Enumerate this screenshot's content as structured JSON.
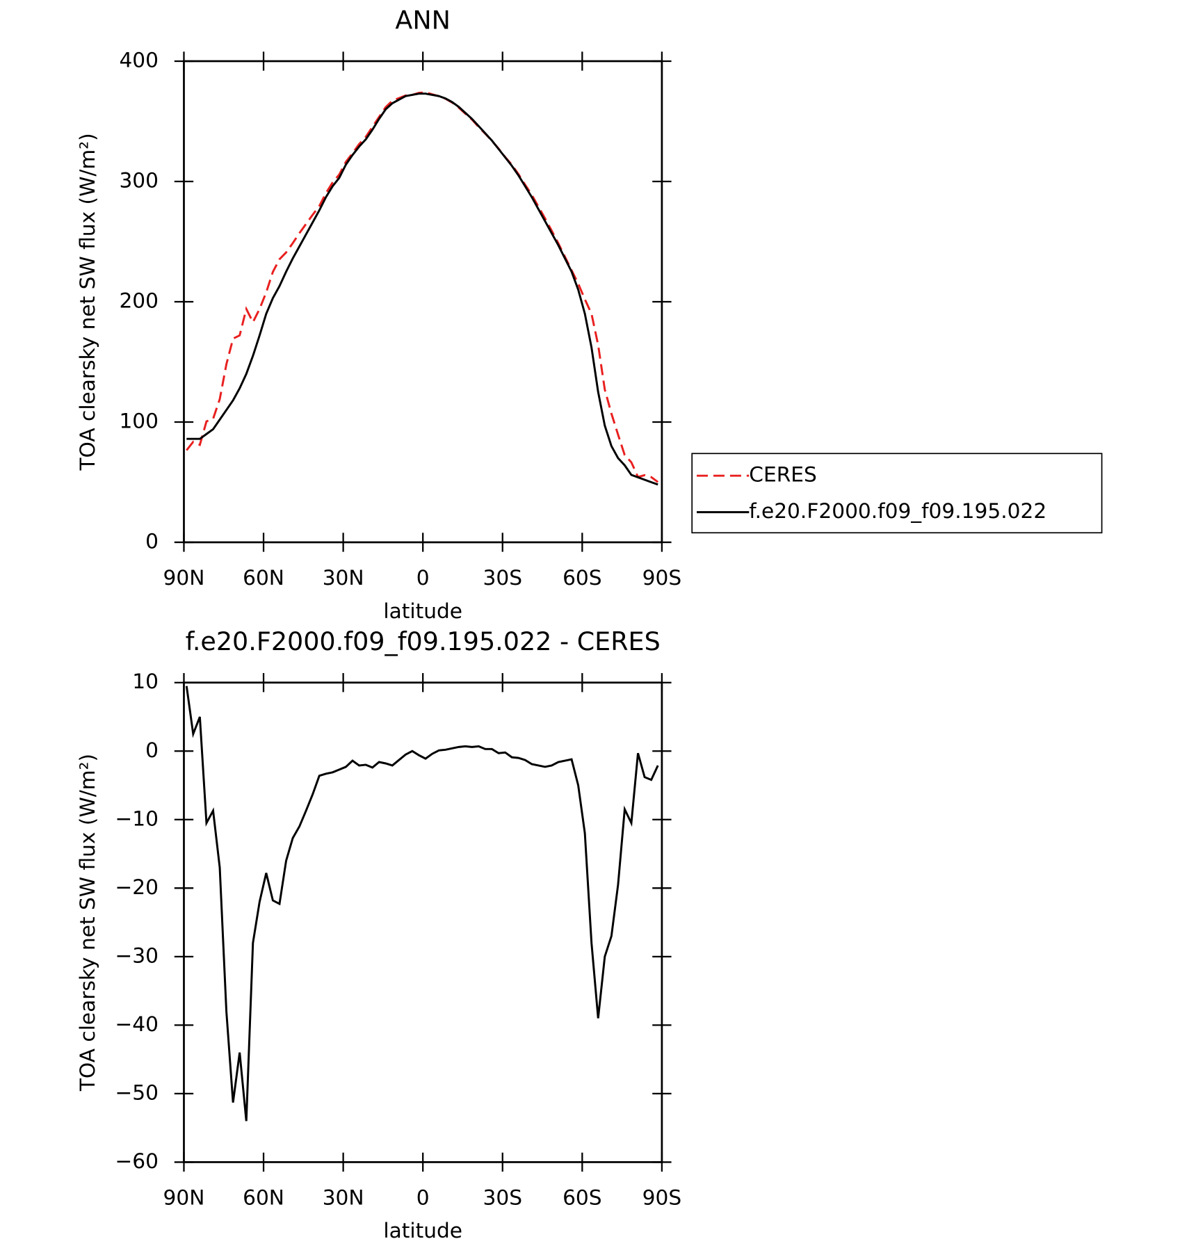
{
  "chart_data": [
    {
      "type": "line",
      "title": "ANN",
      "xlabel": "latitude",
      "ylabel": "TOA clearsky net SW flux (W/m²)",
      "x": [
        89,
        86.5,
        84,
        81.5,
        79,
        76.5,
        74,
        71.5,
        69,
        66.5,
        64,
        61.5,
        59,
        56.5,
        54,
        51.5,
        49,
        46.5,
        44,
        41.5,
        39,
        36.5,
        34,
        31.5,
        29,
        26.5,
        24,
        21.5,
        19,
        16.5,
        14,
        11.5,
        9,
        6.5,
        4,
        1.5,
        -1,
        -3.5,
        -6,
        -8.5,
        -11,
        -13.5,
        -16,
        -18.5,
        -21,
        -23.5,
        -26,
        -28.5,
        -31,
        -33.5,
        -36,
        -38.5,
        -41,
        -43.5,
        -46,
        -48.5,
        -51,
        -53.5,
        -56,
        -58.5,
        -61,
        -63.5,
        -66,
        -68.5,
        -71,
        -73.5,
        -76,
        -78.5,
        -81,
        -83.5,
        -86,
        -88.5
      ],
      "series": [
        {
          "name": "CERES",
          "color": "#e8201f",
          "line_style": "dashed",
          "values": [
            76.5,
            83.5,
            81,
            100.5,
            102.7,
            119,
            148,
            169.3,
            172,
            194,
            183,
            194,
            207.8,
            224.8,
            235.3,
            241,
            248.7,
            257,
            264.7,
            272.3,
            279.6,
            290.3,
            299.1,
            305.7,
            316.3,
            323.4,
            331.1,
            337,
            345.4,
            353.6,
            361.8,
            367.1,
            369.3,
            371.5,
            372,
            373.6,
            374.1,
            372.4,
            370.9,
            368.8,
            365.6,
            361.4,
            356.3,
            351.4,
            345.3,
            339.7,
            333.7,
            327.3,
            320.2,
            313.9,
            306,
            297.3,
            288.9,
            279.1,
            269.3,
            259.1,
            248.6,
            237.4,
            226.2,
            215,
            202,
            190,
            164,
            127,
            107,
            89.5,
            72.5,
            66.5,
            54.3,
            55.8,
            54.2,
            50.1
          ]
        },
        {
          "name": "f.e20.F2000.f09_f09.195.022",
          "color": "#000000",
          "line_style": "solid",
          "values": [
            86,
            86,
            86,
            90,
            94,
            102,
            110,
            118,
            128,
            140,
            155,
            172,
            190,
            203,
            213,
            225,
            236,
            246,
            256,
            266,
            276,
            287,
            296,
            303,
            314,
            322,
            329,
            335,
            343,
            352,
            360,
            365,
            368,
            371,
            372,
            373,
            373,
            372,
            371,
            369,
            366,
            362,
            357,
            352,
            346,
            340,
            334,
            327,
            320,
            313,
            305,
            296,
            287,
            277,
            267,
            257,
            247,
            236,
            225,
            210,
            190,
            162,
            125,
            97,
            80,
            70,
            64,
            56,
            54,
            52,
            50,
            48
          ]
        }
      ],
      "xlim": [
        90,
        -90
      ],
      "xticks": [
        {
          "value": 90,
          "label": "90N"
        },
        {
          "value": 60,
          "label": "60N"
        },
        {
          "value": 30,
          "label": "30N"
        },
        0,
        {
          "value": -30,
          "label": "30S"
        },
        {
          "value": -60,
          "label": "60S"
        },
        {
          "value": -90,
          "label": "90S"
        }
      ],
      "ylim": [
        0,
        400
      ],
      "yticks": [
        0,
        100,
        200,
        300,
        400
      ],
      "legend": "right",
      "grid": false
    },
    {
      "type": "line",
      "title": "f.e20.F2000.f09_f09.195.022 - CERES",
      "xlabel": "latitude",
      "ylabel": "TOA clearsky net SW flux (W/m²)",
      "x": [
        89,
        86.5,
        84,
        81.5,
        79,
        76.5,
        74,
        71.5,
        69,
        66.5,
        64,
        61.5,
        59,
        56.5,
        54,
        51.5,
        49,
        46.5,
        44,
        41.5,
        39,
        36.5,
        34,
        31.5,
        29,
        26.5,
        24,
        21.5,
        19,
        16.5,
        14,
        11.5,
        9,
        6.5,
        4,
        1.5,
        -1,
        -3.5,
        -6,
        -8.5,
        -11,
        -13.5,
        -16,
        -18.5,
        -21,
        -23.5,
        -26,
        -28.5,
        -31,
        -33.5,
        -36,
        -38.5,
        -41,
        -43.5,
        -46,
        -48.5,
        -51,
        -53.5,
        -56,
        -58.5,
        -61,
        -63.5,
        -66,
        -68.5,
        -71,
        -73.5,
        -76,
        -78.5,
        -81,
        -83.5,
        -86,
        -88.5
      ],
      "series": [
        {
          "name": "f.e20.F2000.f09_f09.195.022 - CERES",
          "color": "#000000",
          "line_style": "solid",
          "values": [
            9.5,
            2.5,
            5,
            -10.5,
            -8.7,
            -17,
            -38,
            -51.3,
            -44,
            -54,
            -28,
            -22,
            -17.8,
            -21.8,
            -22.3,
            -16,
            -12.7,
            -11,
            -8.7,
            -6.3,
            -3.6,
            -3.3,
            -3.1,
            -2.7,
            -2.3,
            -1.4,
            -2.1,
            -2,
            -2.4,
            -1.6,
            -1.8,
            -2.1,
            -1.3,
            -0.5,
            0,
            -0.6,
            -1.1,
            -0.4,
            0.1,
            0.2,
            0.4,
            0.6,
            0.7,
            0.6,
            0.7,
            0.3,
            0.3,
            -0.3,
            -0.2,
            -0.9,
            -1,
            -1.3,
            -1.9,
            -2.1,
            -2.3,
            -2.1,
            -1.6,
            -1.4,
            -1.2,
            -5,
            -12,
            -28,
            -39,
            -30,
            -27,
            -19.5,
            -8.5,
            -10.5,
            -0.3,
            -3.8,
            -4.2,
            -2.1
          ]
        }
      ],
      "xlim": [
        90,
        -90
      ],
      "xticks": [
        {
          "value": 90,
          "label": "90N"
        },
        {
          "value": 60,
          "label": "60N"
        },
        {
          "value": 30,
          "label": "30N"
        },
        0,
        {
          "value": -30,
          "label": "30S"
        },
        {
          "value": -60,
          "label": "60S"
        },
        {
          "value": -90,
          "label": "90S"
        }
      ],
      "ylim": [
        -60,
        10
      ],
      "yticks": [
        {
          "value": -60,
          "label": "−60"
        },
        {
          "value": -50,
          "label": "−50"
        },
        {
          "value": -40,
          "label": "−40"
        },
        {
          "value": -30,
          "label": "−30"
        },
        {
          "value": -20,
          "label": "−20"
        },
        {
          "value": -10,
          "label": "−10"
        },
        0,
        10
      ],
      "grid": false
    }
  ]
}
